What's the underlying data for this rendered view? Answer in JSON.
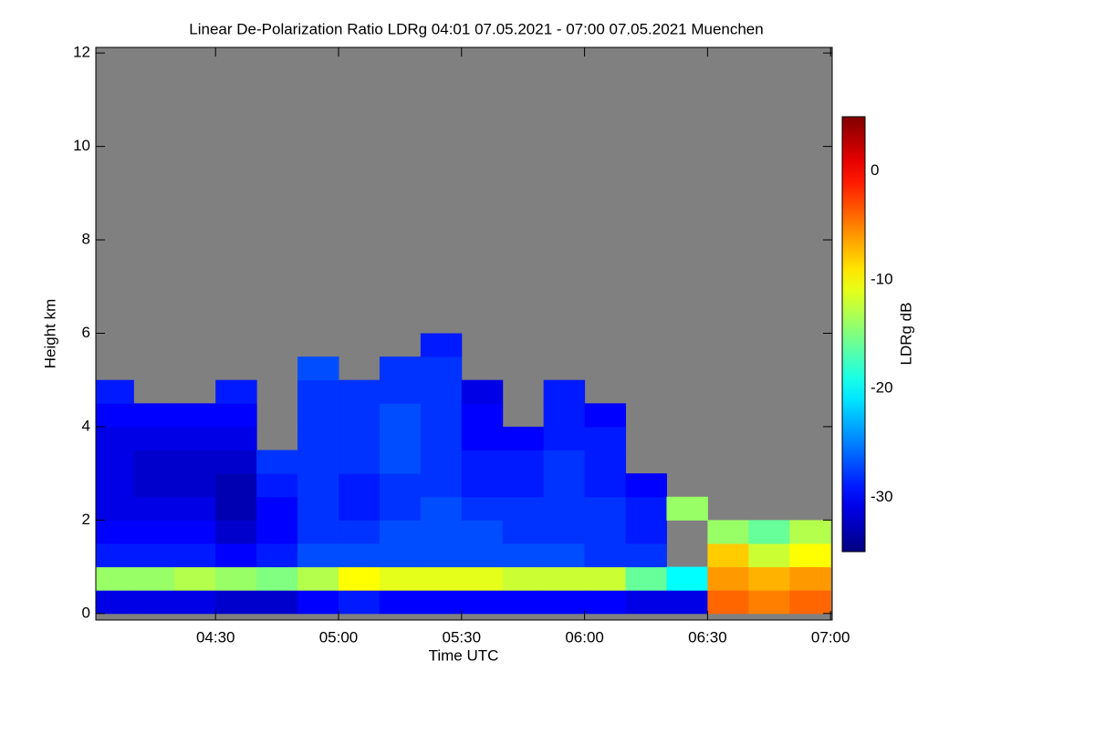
{
  "chart_data": {
    "type": "heatmap",
    "title": "Linear De-Polarization Ratio LDRg   04:01 07.05.2021 - 07:00 07.05.2021 Muenchen",
    "xlabel": "Time UTC",
    "ylabel": "Height km",
    "colorbar_label": "LDRg dB",
    "xlim": [
      4.0133,
      7.0067
    ],
    "xticks": [
      {
        "value": 4.5,
        "label": "04:30"
      },
      {
        "value": 5,
        "label": "05:00"
      },
      {
        "value": 5.5,
        "label": "05:30"
      },
      {
        "value": 6,
        "label": "06:00"
      },
      {
        "value": 6.5,
        "label": "06:30"
      },
      {
        "value": 7,
        "label": "07:00"
      }
    ],
    "ylim": [
      -0.14,
      12.12
    ],
    "yticks": [
      0,
      2,
      4,
      6,
      8,
      10,
      12
    ],
    "clim": [
      -35,
      5
    ],
    "cticks": [
      0,
      -10,
      -20,
      -30
    ],
    "colormap": "jet",
    "missing_color": "#808080",
    "x_bins": [
      4,
      4.1667,
      4.3333,
      4.5,
      4.6667,
      4.8333,
      5,
      5.1667,
      5.3333,
      5.5,
      5.6667,
      5.8333,
      6,
      6.1667,
      6.3333,
      6.5,
      6.6667,
      6.8333,
      7
    ],
    "y_bins": [
      0,
      0.5,
      1,
      1.5,
      2,
      2.5,
      3,
      3.5,
      4,
      4.5,
      5,
      5.5,
      6
    ],
    "z": [
      [
        -31,
        -14,
        -29,
        -30,
        -31,
        -31,
        -31,
        -31,
        -30,
        -29,
        null,
        null
      ],
      [
        -31,
        -14,
        -29,
        -30,
        -31,
        -32,
        -32,
        -31,
        -30,
        null,
        null,
        null
      ],
      [
        -31,
        -13,
        -29,
        -30,
        -31,
        -32,
        -32,
        -31,
        -30,
        null,
        null,
        null
      ],
      [
        -32,
        -14,
        -30,
        -32,
        -33,
        -33,
        -32,
        -31,
        -30,
        -29,
        null,
        null
      ],
      [
        -32,
        -15,
        -29,
        -30,
        -30,
        -29,
        -28,
        null,
        null,
        null,
        null,
        null
      ],
      [
        -30,
        -13,
        -27,
        -28,
        -28,
        -28,
        -28,
        -28,
        -28,
        -28,
        -27,
        null
      ],
      [
        -29,
        -10,
        -27,
        -28,
        -29,
        -29,
        -28,
        -28,
        -28,
        -28,
        null,
        null
      ],
      [
        -30,
        -11,
        -27,
        -27,
        -28,
        -28,
        -27,
        -27,
        -27,
        -28,
        -28,
        null
      ],
      [
        -30,
        -11,
        -27,
        -27,
        -27,
        -28,
        -28,
        -28,
        -28,
        -28,
        -28,
        -29
      ],
      [
        -30,
        -11,
        -27,
        -27,
        -28,
        -29,
        -29,
        -30,
        -30,
        -31,
        null,
        null
      ],
      [
        -30,
        -12,
        -27,
        -28,
        -28,
        -29,
        -29,
        -30,
        null,
        null,
        null,
        null
      ],
      [
        -30,
        -12,
        -27,
        -28,
        -28,
        -28,
        -28,
        -29,
        -29,
        -29,
        null,
        null
      ],
      [
        -30,
        -12,
        -28,
        -28,
        -28,
        -29,
        -29,
        -29,
        -30,
        null,
        null,
        null
      ],
      [
        -31,
        -16,
        -28,
        -29,
        -29,
        -30,
        null,
        null,
        null,
        null,
        null,
        null
      ],
      [
        -31,
        -20,
        null,
        null,
        -14,
        null,
        null,
        null,
        null,
        null,
        null,
        null
      ],
      [
        -4,
        -6,
        -8,
        -14,
        null,
        null,
        null,
        null,
        null,
        null,
        null,
        null
      ],
      [
        -5,
        -7,
        -12,
        -16,
        null,
        null,
        null,
        null,
        null,
        null,
        null,
        null
      ],
      [
        -4,
        -6,
        -10,
        -13,
        null,
        null,
        null,
        null,
        null,
        null,
        null,
        null
      ]
    ]
  }
}
